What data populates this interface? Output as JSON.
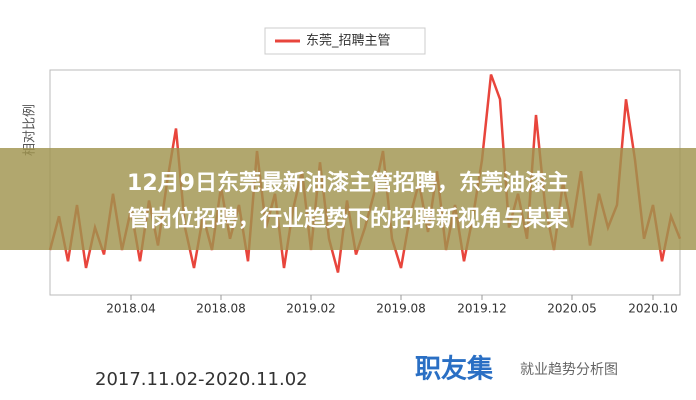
{
  "chart_data": {
    "type": "line",
    "legend_position": "top",
    "y_label": "相对比例",
    "series": [
      {
        "name": "东莞_招聘主管",
        "color": "#e8453c",
        "values": [
          20,
          35,
          15,
          40,
          12,
          30,
          18,
          45,
          20,
          38,
          15,
          42,
          22,
          50,
          74,
          30,
          12,
          35,
          20,
          48,
          25,
          40,
          15,
          64,
          30,
          45,
          12,
          38,
          55,
          20,
          59,
          25,
          10,
          42,
          18,
          30,
          45,
          64,
          25,
          12,
          35,
          50,
          28,
          55,
          20,
          40,
          15,
          35,
          60,
          98,
          87,
          30,
          45,
          25,
          80,
          40,
          20,
          50,
          30,
          55,
          22,
          45,
          30,
          40,
          87,
          60,
          25,
          40,
          15,
          35,
          25
        ]
      }
    ],
    "xlim": [
      0,
      70
    ],
    "xticks": [
      {
        "value": 9,
        "label": "2018.04"
      },
      {
        "value": 19,
        "label": "2018.08"
      },
      {
        "value": 29,
        "label": "2019.02"
      },
      {
        "value": 39,
        "label": "2019.08"
      },
      {
        "value": 48,
        "label": "2019.12"
      },
      {
        "value": 58,
        "label": "2020.05"
      },
      {
        "value": 67,
        "label": "2020.10"
      }
    ],
    "ylim": [
      0,
      100
    ]
  },
  "date_range": "2017.11.02-2020.11.02",
  "watermark": {
    "brand": "职友集",
    "caption": "就业趋势分析图"
  },
  "overlay": {
    "lines": [
      "12月9日东莞最新油漆主管招聘，东莞油漆主",
      "管岗位招聘，行业趋势下的招聘新视角与某某"
    ]
  }
}
